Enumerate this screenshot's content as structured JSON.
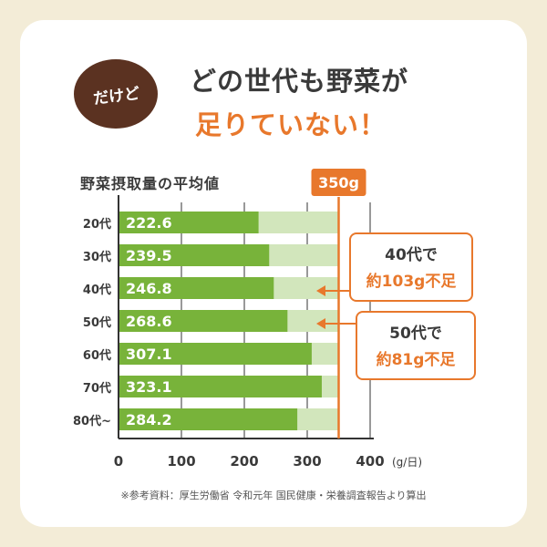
{
  "badge": {
    "text": "だけど"
  },
  "headline": {
    "line1": "どの世代も野菜が",
    "line2": "足りていない！"
  },
  "source_note": "※参考資料：厚生労働省 令和元年 国民健康・栄養調査報告より算出",
  "callouts": [
    {
      "line1": "40代で",
      "line2": "約103g不足"
    },
    {
      "line1": "50代で",
      "line2": "約81g不足"
    }
  ],
  "colors": {
    "bar": "#78b33a",
    "shortfall": "#d2e6bc",
    "accent": "#e8782c",
    "badge": "#5b3221"
  },
  "chart_data": {
    "type": "bar",
    "orientation": "horizontal",
    "title": "野菜摂取量の平均値",
    "categories": [
      "20代",
      "30代",
      "40代",
      "50代",
      "60代",
      "70代",
      "80代~"
    ],
    "values": [
      222.6,
      239.5,
      246.8,
      268.6,
      307.1,
      323.1,
      284.2
    ],
    "value_labels": [
      "222.6",
      "239.5",
      "246.8",
      "268.6",
      "307.1",
      "323.1",
      "284.2"
    ],
    "target": 350,
    "target_label": "350g",
    "xlim": [
      0,
      400
    ],
    "xticks": [
      0,
      100,
      200,
      300,
      400
    ],
    "xtick_labels": [
      "0",
      "100",
      "200",
      "300",
      "400"
    ],
    "xunit": "(g/日)",
    "grid": true
  }
}
